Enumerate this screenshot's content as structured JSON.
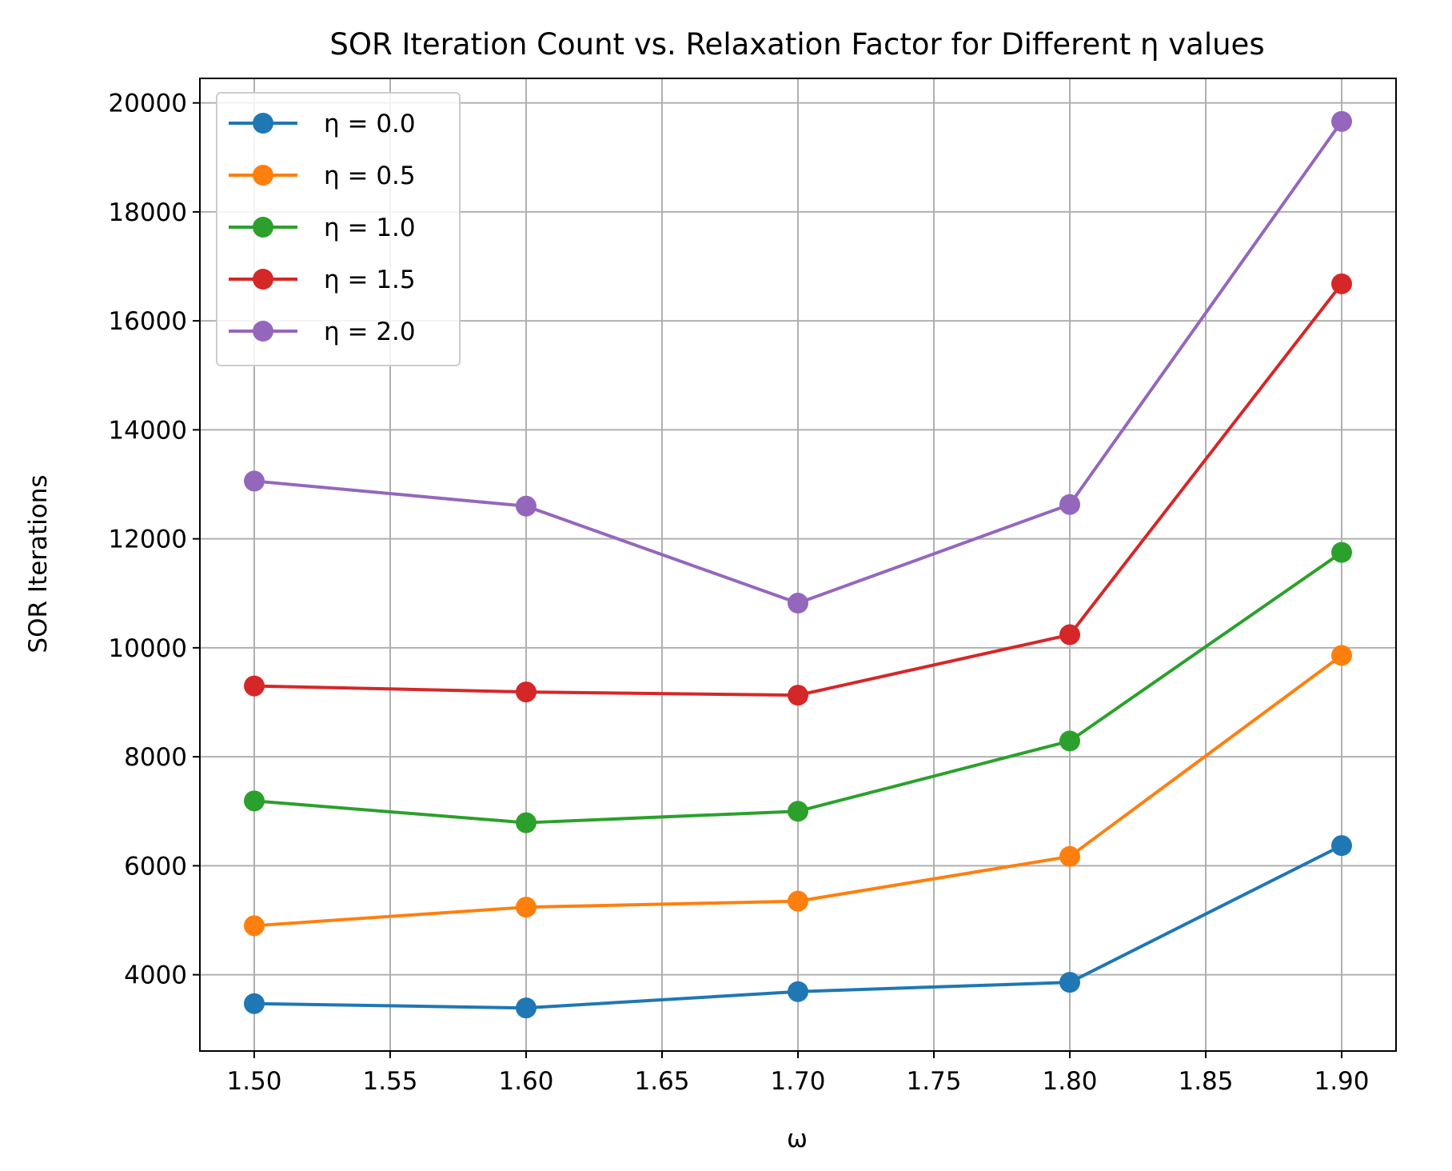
{
  "chart_data": {
    "type": "line",
    "title": "SOR Iteration Count vs. Relaxation Factor for Different η values",
    "xlabel": "ω",
    "ylabel": "SOR Iterations",
    "x": [
      1.5,
      1.6,
      1.7,
      1.8,
      1.9
    ],
    "xlim": [
      1.48,
      1.92
    ],
    "ylim": [
      2600,
      20450
    ],
    "xticks": [
      1.5,
      1.55,
      1.6,
      1.65,
      1.7,
      1.75,
      1.8,
      1.85,
      1.9
    ],
    "xtick_labels": [
      "1.50",
      "1.55",
      "1.60",
      "1.65",
      "1.70",
      "1.75",
      "1.80",
      "1.85",
      "1.90"
    ],
    "yticks": [
      4000,
      6000,
      8000,
      10000,
      12000,
      14000,
      16000,
      18000,
      20000
    ],
    "ytick_labels": [
      "4000",
      "6000",
      "8000",
      "10000",
      "12000",
      "14000",
      "16000",
      "18000",
      "20000"
    ],
    "grid": true,
    "legend_position": "top-left",
    "series": [
      {
        "name": "η = 0.0",
        "color": "#1f77b4",
        "values": [
          3470,
          3390,
          3690,
          3860,
          6370
        ]
      },
      {
        "name": "η = 0.5",
        "color": "#ff7f0e",
        "values": [
          4900,
          5240,
          5350,
          6170,
          9860
        ]
      },
      {
        "name": "η = 1.0",
        "color": "#2ca02c",
        "values": [
          7190,
          6790,
          7000,
          8290,
          11750
        ]
      },
      {
        "name": "η = 1.5",
        "color": "#d62728",
        "values": [
          9300,
          9190,
          9130,
          10240,
          16680
        ]
      },
      {
        "name": "η = 2.0",
        "color": "#9467bd",
        "values": [
          13060,
          12600,
          10820,
          12630,
          19660
        ]
      }
    ]
  }
}
